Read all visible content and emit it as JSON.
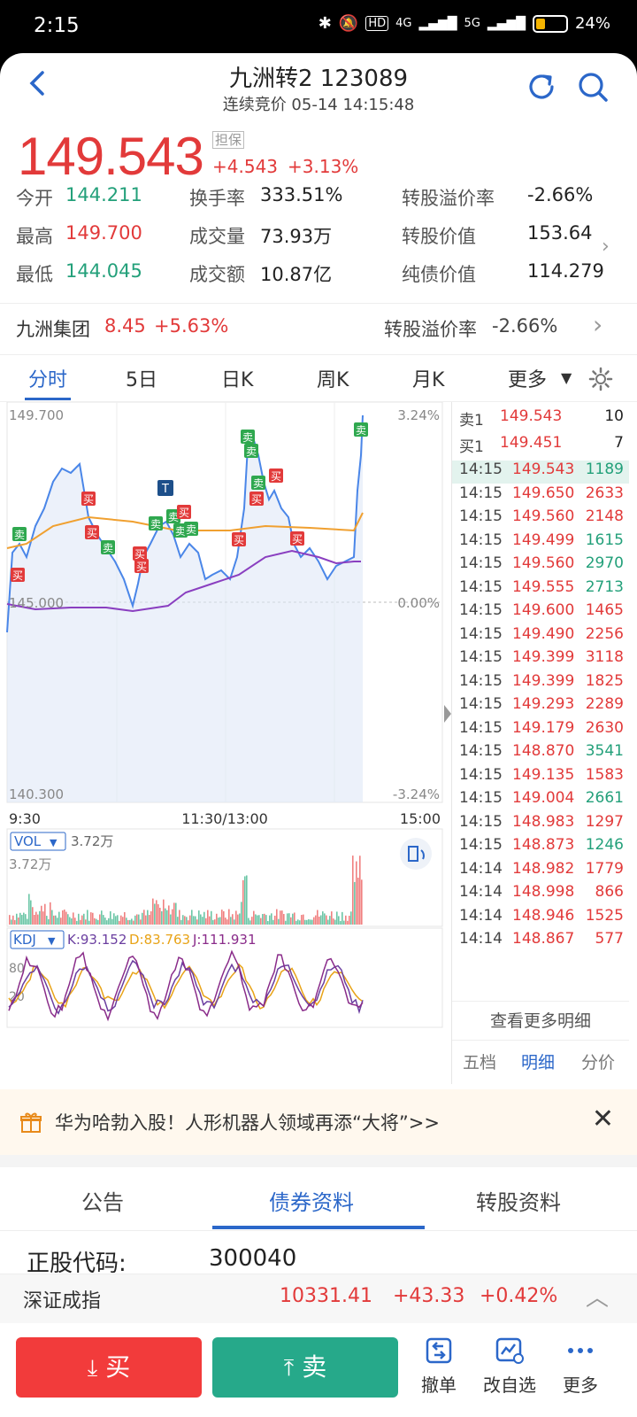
{
  "status": {
    "time": "2:15",
    "hd": "HD",
    "net1": "4G",
    "net2": "5G",
    "battery": "24%",
    "battery_level": 0.24
  },
  "header": {
    "title": "九洲转2 123089",
    "subtitle": "连续竞价 05-14 14:15:48"
  },
  "quote": {
    "price": "149.543",
    "badge": "担保",
    "change": "+4.543",
    "change_pct": "+3.13%",
    "rows": [
      [
        {
          "l": "今开",
          "v": "144.211",
          "c": "green"
        },
        {
          "l": "换手率",
          "v": "333.51%",
          "c": "dark"
        },
        {
          "l": "转股溢价率",
          "v": "-2.66%",
          "c": "dark"
        }
      ],
      [
        {
          "l": "最高",
          "v": "149.700",
          "c": "red"
        },
        {
          "l": "成交量",
          "v": "73.93万",
          "c": "dark"
        },
        {
          "l": "转股价值",
          "v": "153.64",
          "c": "dark"
        }
      ],
      [
        {
          "l": "最低",
          "v": "144.045",
          "c": "green"
        },
        {
          "l": "成交额",
          "v": "10.87亿",
          "c": "dark"
        },
        {
          "l": "纯债价值",
          "v": "114.279",
          "c": "dark"
        }
      ]
    ]
  },
  "stock": {
    "name": "九洲集团",
    "price": "8.45",
    "pct": "+5.63%",
    "premium_label": "转股溢价率",
    "premium": "-2.66%"
  },
  "tabs": [
    "分时",
    "5日",
    "日K",
    "周K",
    "月K",
    "更多"
  ],
  "chart": {
    "y_max": "149.700",
    "y_min": "140.300",
    "y_mid": "145.000",
    "pct_max": "3.24%",
    "pct_mid": "0.00%",
    "pct_min": "-3.24%",
    "x_start": "9:30",
    "x_mid": "11:30/13:00",
    "x_end": "15:00",
    "vol_label": "VOL",
    "vol_value": "3.72万",
    "vol_axis": "3.72万",
    "kdj_label": "KDJ",
    "k": "K:93.152",
    "d": "D:83.763",
    "j": "J:111.931",
    "kdj_axis_top": "80",
    "kdj_axis_bot": "20",
    "buy": "买",
    "sell": "卖",
    "t": "T"
  },
  "ticks": {
    "ask": {
      "label": "卖1",
      "price": "149.543",
      "vol": "10"
    },
    "bid": {
      "label": "买1",
      "price": "149.451",
      "vol": "7"
    },
    "rows": [
      [
        "14:15",
        "149.543",
        "1189",
        "g"
      ],
      [
        "14:15",
        "149.650",
        "2633",
        "r"
      ],
      [
        "14:15",
        "149.560",
        "2148",
        "r"
      ],
      [
        "14:15",
        "149.499",
        "1615",
        "g"
      ],
      [
        "14:15",
        "149.560",
        "2970",
        "g"
      ],
      [
        "14:15",
        "149.555",
        "2713",
        "g"
      ],
      [
        "14:15",
        "149.600",
        "1465",
        "r"
      ],
      [
        "14:15",
        "149.490",
        "2256",
        "r"
      ],
      [
        "14:15",
        "149.399",
        "3118",
        "r"
      ],
      [
        "14:15",
        "149.399",
        "1825",
        "r"
      ],
      [
        "14:15",
        "149.293",
        "2289",
        "r"
      ],
      [
        "14:15",
        "149.179",
        "2630",
        "r"
      ],
      [
        "14:15",
        "148.870",
        "3541",
        "g"
      ],
      [
        "14:15",
        "149.135",
        "1583",
        "r"
      ],
      [
        "14:15",
        "149.004",
        "2661",
        "g"
      ],
      [
        "14:15",
        "148.983",
        "1297",
        "r"
      ],
      [
        "14:15",
        "148.873",
        "1246",
        "g"
      ],
      [
        "14:14",
        "148.982",
        "1779",
        "r"
      ],
      [
        "14:14",
        "148.998",
        "866",
        "r"
      ],
      [
        "14:14",
        "148.946",
        "1525",
        "r"
      ],
      [
        "14:14",
        "148.867",
        "577",
        "r"
      ]
    ],
    "more": "查看更多明细",
    "tabs": [
      "五档",
      "明细",
      "分价"
    ]
  },
  "ad": {
    "text": "华为哈勃入股！人形机器人领域再添“大将”>>"
  },
  "bottom_tabs": [
    "公告",
    "债券资料",
    "转股资料"
  ],
  "info": {
    "label": "正股代码:",
    "value": "300040"
  },
  "index": {
    "name": "深证成指",
    "value": "10331.41",
    "change": "+43.33",
    "pct": "+0.42%"
  },
  "actions": {
    "buy": "买",
    "sell": "卖",
    "tools": [
      "撤单",
      "改自选",
      "更多"
    ]
  }
}
